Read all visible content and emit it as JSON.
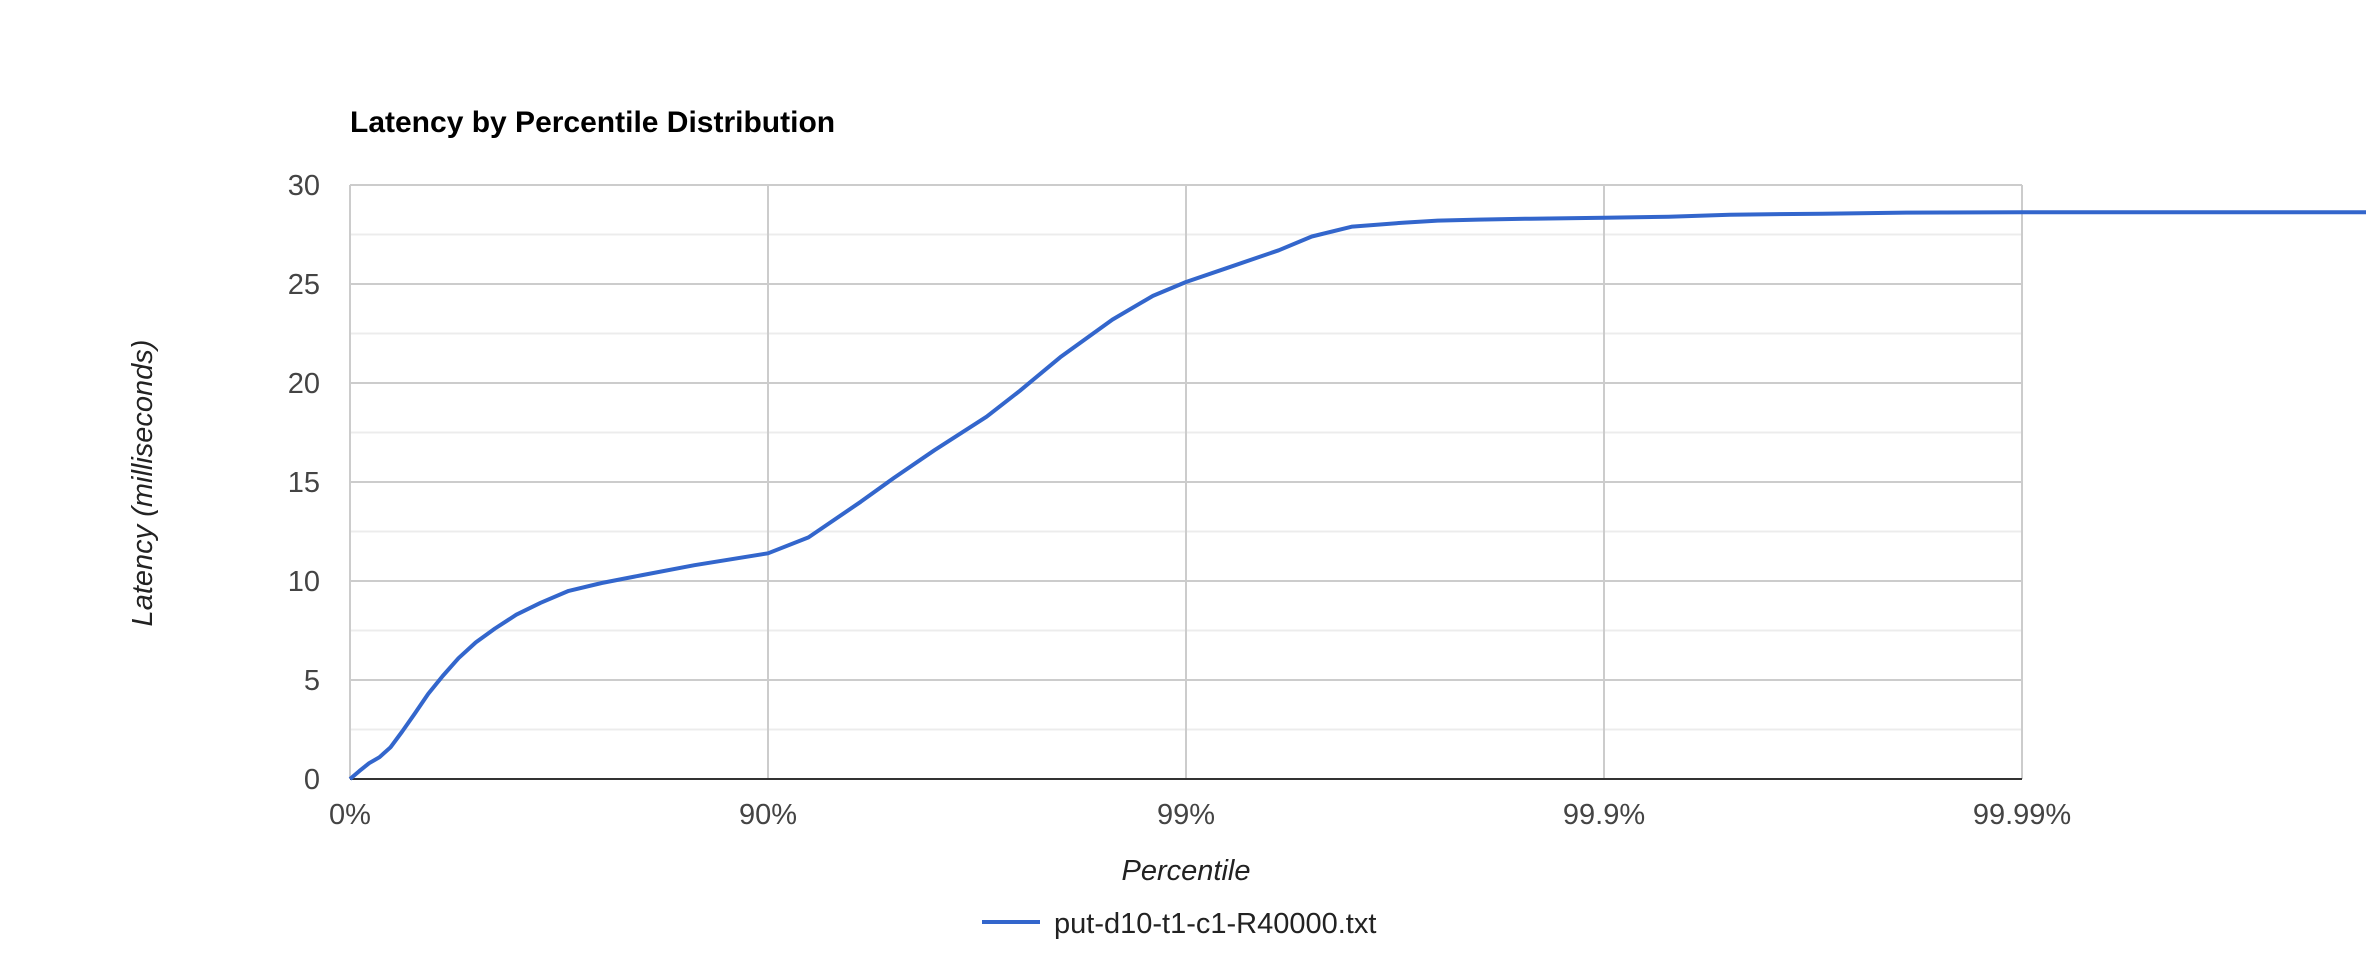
{
  "chart_data": {
    "type": "line",
    "title": "Latency by Percentile Distribution",
    "xlabel": "Percentile",
    "ylabel": "Latency (milliseconds)",
    "x_scale": "log (1/(1-percentile))",
    "x_tick_labels": [
      "0%",
      "90%",
      "99%",
      "99.9%",
      "99.99%"
    ],
    "x_tick_percentiles": [
      0,
      90,
      99,
      99.9,
      99.99
    ],
    "y_ticks": [
      0,
      5,
      10,
      15,
      20,
      25,
      30
    ],
    "ylim": [
      0,
      30
    ],
    "grid": true,
    "legend_position": "bottom",
    "series": [
      {
        "name": "put-d10-t1-c1-R40000.txt",
        "color": "#3366cc",
        "x": [
          0,
          5,
          10,
          15,
          20,
          25,
          30,
          35,
          40,
          45,
          50,
          55,
          60,
          65,
          70,
          75,
          80,
          85,
          90,
          92,
          94,
          95,
          96,
          97,
          97.5,
          98,
          98.5,
          98.8,
          99.0,
          99.2,
          99.4,
          99.5,
          99.6,
          99.7,
          99.75,
          99.8,
          99.85,
          99.9,
          99.93,
          99.95,
          99.97,
          99.98,
          99.99,
          99.995,
          99.9995
        ],
        "y": [
          0,
          0.4,
          0.8,
          1.1,
          1.6,
          2.4,
          3.3,
          4.3,
          5.2,
          6.1,
          6.9,
          7.6,
          8.3,
          8.9,
          9.5,
          9.9,
          10.3,
          10.8,
          11.4,
          12.2,
          14.0,
          15.2,
          16.6,
          18.3,
          19.6,
          21.3,
          23.2,
          24.4,
          25.1,
          25.8,
          26.7,
          27.4,
          27.9,
          28.1,
          28.2,
          28.25,
          28.3,
          28.35,
          28.4,
          28.5,
          28.55,
          28.6,
          28.62,
          28.62,
          28.62
        ]
      }
    ]
  }
}
